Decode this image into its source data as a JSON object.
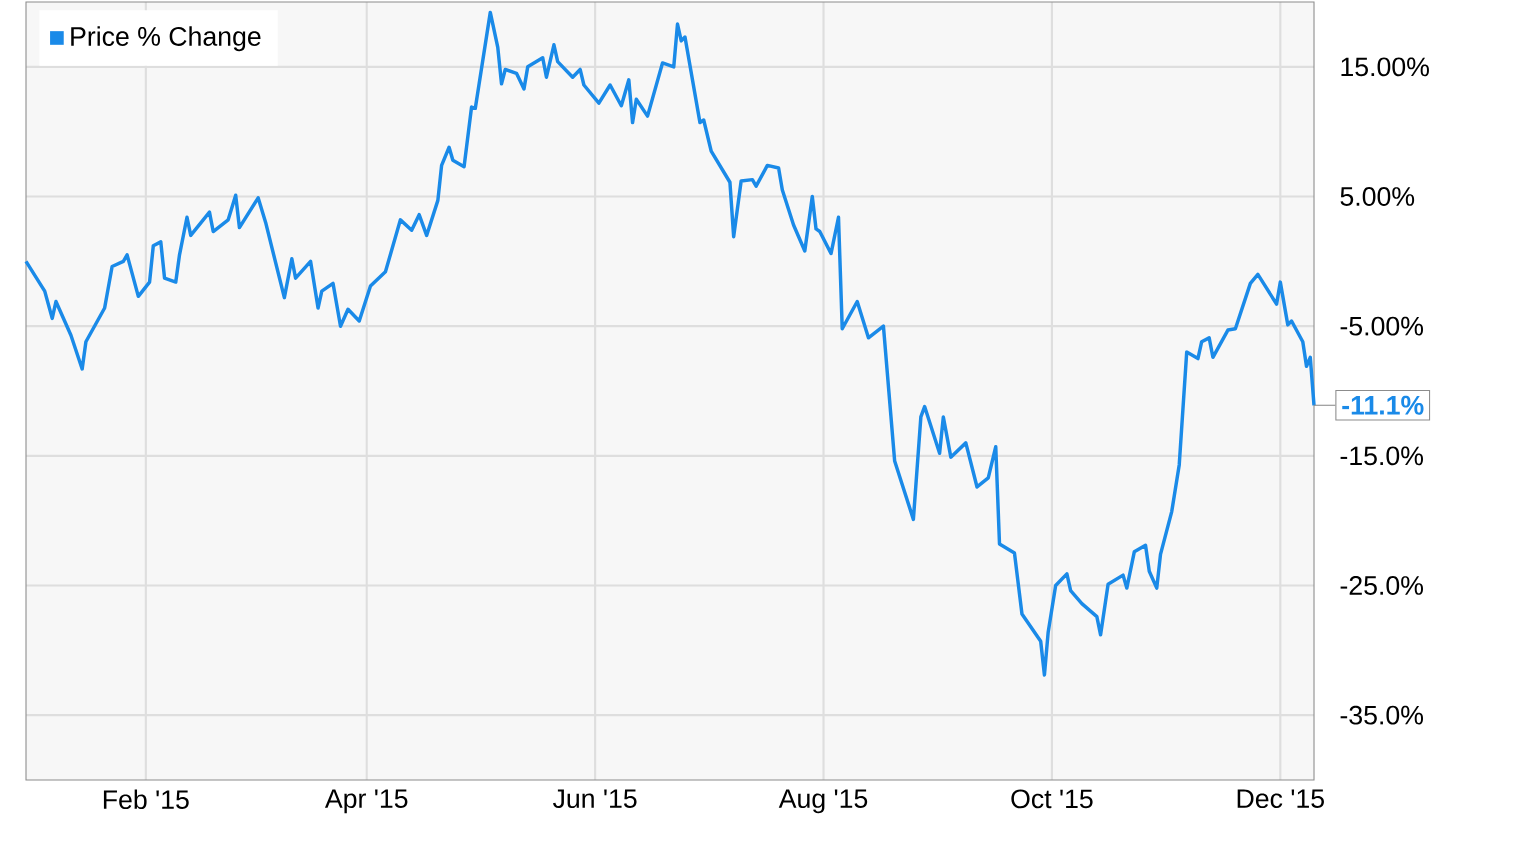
{
  "chart_data": {
    "type": "line",
    "legend": "top left",
    "grid": true,
    "xlim": [
      "2014-12-31",
      "2015-12-10"
    ],
    "xticks": [
      {
        "value": "2015-02-01",
        "label": "Feb '15"
      },
      {
        "value": "2015-04-01",
        "label": "Apr '15"
      },
      {
        "value": "2015-06-01",
        "label": "Jun '15"
      },
      {
        "value": "2015-08-01",
        "label": "Aug '15"
      },
      {
        "value": "2015-10-01",
        "label": "Oct '15"
      },
      {
        "value": "2015-12-01",
        "label": "Dec '15"
      }
    ],
    "ylim": [
      -40,
      20
    ],
    "yticks": [
      {
        "value": -35,
        "label": "-35.0%"
      },
      {
        "value": -25,
        "label": "-25.0%"
      },
      {
        "value": -15,
        "label": "-15.0%"
      },
      {
        "value": -5,
        "label": "-5.00%"
      },
      {
        "value": 5,
        "label": "5.00%"
      },
      {
        "value": 15,
        "label": "15.00%"
      }
    ],
    "annotations": [
      {
        "text": "-11.1%",
        "x": "2015-12-10",
        "y": -11.1
      }
    ],
    "x": [
      "2014-12-31",
      "2015-01-05",
      "2015-01-07",
      "2015-01-08",
      "2015-01-12",
      "2015-01-15",
      "2015-01-16",
      "2015-01-21",
      "2015-01-23",
      "2015-01-26",
      "2015-01-27",
      "2015-01-30",
      "2015-02-02",
      "2015-02-03",
      "2015-02-05",
      "2015-02-06",
      "2015-02-09",
      "2015-02-10",
      "2015-02-12",
      "2015-02-13",
      "2015-02-18",
      "2015-02-19",
      "2015-02-23",
      "2015-02-25",
      "2015-02-26",
      "2015-03-03",
      "2015-03-05",
      "2015-03-10",
      "2015-03-12",
      "2015-03-13",
      "2015-03-17",
      "2015-03-19",
      "2015-03-20",
      "2015-03-23",
      "2015-03-25",
      "2015-03-27",
      "2015-03-30",
      "2015-04-02",
      "2015-04-06",
      "2015-04-10",
      "2015-04-13",
      "2015-04-15",
      "2015-04-17",
      "2015-04-20",
      "2015-04-21",
      "2015-04-23",
      "2015-04-24",
      "2015-04-27",
      "2015-04-29",
      "2015-04-30",
      "2015-05-04",
      "2015-05-06",
      "2015-05-07",
      "2015-05-08",
      "2015-05-11",
      "2015-05-13",
      "2015-05-14",
      "2015-05-18",
      "2015-05-19",
      "2015-05-21",
      "2015-05-22",
      "2015-05-26",
      "2015-05-28",
      "2015-05-29",
      "2015-06-02",
      "2015-06-05",
      "2015-06-08",
      "2015-06-10",
      "2015-06-11",
      "2015-06-12",
      "2015-06-15",
      "2015-06-19",
      "2015-06-22",
      "2015-06-23",
      "2015-06-24",
      "2015-06-25",
      "2015-06-29",
      "2015-06-30",
      "2015-07-02",
      "2015-07-07",
      "2015-07-08",
      "2015-07-10",
      "2015-07-13",
      "2015-07-14",
      "2015-07-17",
      "2015-07-20",
      "2015-07-21",
      "2015-07-24",
      "2015-07-27",
      "2015-07-29",
      "2015-07-30",
      "2015-07-31",
      "2015-08-03",
      "2015-08-05",
      "2015-08-06",
      "2015-08-10",
      "2015-08-13",
      "2015-08-17",
      "2015-08-20",
      "2015-08-25",
      "2015-08-27",
      "2015-08-28",
      "2015-09-01",
      "2015-09-02",
      "2015-09-04",
      "2015-09-08",
      "2015-09-11",
      "2015-09-14",
      "2015-09-16",
      "2015-09-17",
      "2015-09-21",
      "2015-09-23",
      "2015-09-28",
      "2015-09-29",
      "2015-09-30",
      "2015-10-02",
      "2015-10-05",
      "2015-10-06",
      "2015-10-09",
      "2015-10-13",
      "2015-10-14",
      "2015-10-16",
      "2015-10-20",
      "2015-10-21",
      "2015-10-23",
      "2015-10-26",
      "2015-10-27",
      "2015-10-29",
      "2015-10-30",
      "2015-11-02",
      "2015-11-04",
      "2015-11-06",
      "2015-11-09",
      "2015-11-10",
      "2015-11-12",
      "2015-11-13",
      "2015-11-17",
      "2015-11-19",
      "2015-11-23",
      "2015-11-25",
      "2015-11-30",
      "2015-12-01",
      "2015-12-03",
      "2015-12-04",
      "2015-12-07",
      "2015-12-08",
      "2015-12-09",
      "2015-12-10"
    ],
    "series": [
      {
        "name": "Price % Change",
        "color": "#1a8ae8",
        "values": [
          0.0,
          -2.3,
          -4.4,
          -3.1,
          -5.7,
          -8.3,
          -6.2,
          -3.6,
          -0.4,
          0.0,
          0.5,
          -2.7,
          -1.6,
          1.2,
          1.5,
          -1.3,
          -1.6,
          0.5,
          3.4,
          2.0,
          3.8,
          2.3,
          3.2,
          5.1,
          2.6,
          4.9,
          3.0,
          -2.8,
          0.2,
          -1.3,
          0.0,
          -3.6,
          -2.3,
          -1.7,
          -5.0,
          -3.7,
          -4.6,
          -1.9,
          -0.8,
          3.2,
          2.4,
          3.6,
          2.0,
          4.7,
          7.4,
          8.8,
          7.8,
          7.3,
          11.9,
          11.8,
          19.2,
          16.5,
          13.7,
          14.8,
          14.5,
          13.3,
          15.0,
          15.7,
          14.2,
          16.7,
          15.4,
          14.2,
          14.8,
          13.6,
          12.2,
          13.6,
          12.0,
          14.0,
          10.7,
          12.5,
          11.2,
          15.3,
          15.0,
          18.3,
          17.0,
          17.3,
          10.7,
          10.9,
          8.5,
          6.1,
          1.9,
          6.2,
          6.3,
          5.8,
          7.4,
          7.2,
          5.5,
          2.8,
          0.8,
          5.0,
          2.5,
          2.3,
          0.6,
          3.4,
          -5.2,
          -3.1,
          -5.9,
          -5.0,
          -15.4,
          -19.9,
          -12.0,
          -11.2,
          -14.8,
          -12.0,
          -15.1,
          -14.0,
          -17.4,
          -16.7,
          -14.3,
          -21.8,
          -22.5,
          -27.2,
          -29.3,
          -31.9,
          -28.6,
          -25.0,
          -24.1,
          -25.4,
          -26.4,
          -27.4,
          -28.8,
          -24.9,
          -24.2,
          -25.2,
          -22.4,
          -21.9,
          -23.9,
          -25.2,
          -22.6,
          -19.3,
          -15.7,
          -7.0,
          -7.5,
          -6.2,
          -5.9,
          -7.4,
          -5.3,
          -5.2,
          -1.7,
          -1.0,
          -3.3,
          -1.6,
          -4.9,
          -4.6,
          -6.2,
          -8.1,
          -7.4,
          -11.1
        ]
      }
    ]
  }
}
